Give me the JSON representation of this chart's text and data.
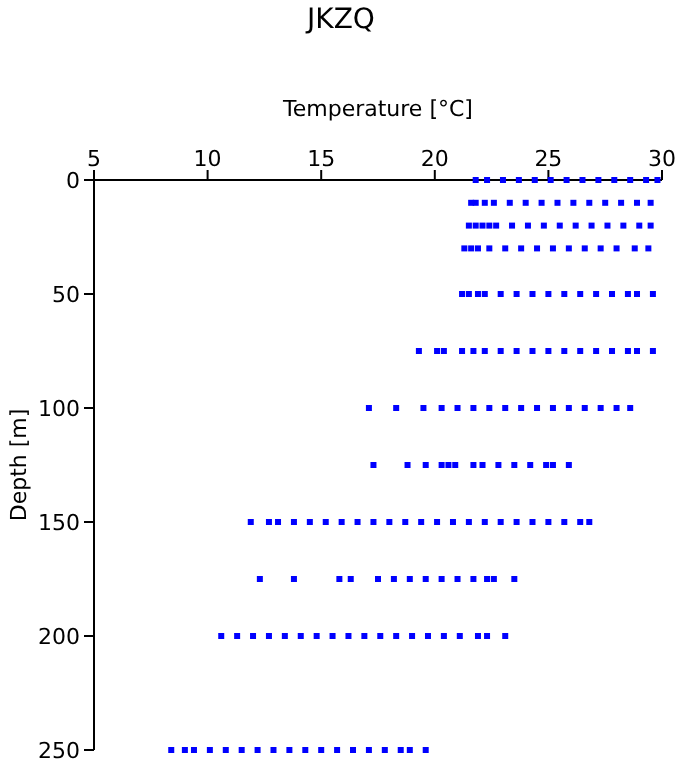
{
  "chart_data": {
    "type": "scatter",
    "title": "JKZQ",
    "xlabel": "Temperature [°C]",
    "ylabel": "Depth [m]",
    "xlim": [
      5,
      30
    ],
    "xticks": [
      5,
      10,
      15,
      20,
      25,
      30
    ],
    "ylim": [
      250,
      0
    ],
    "yticks": [
      0,
      50,
      100,
      150,
      200,
      250
    ],
    "grid": false,
    "legend": false,
    "marker": "square",
    "series": [
      {
        "color": "#0000ff",
        "x": [
          21.8,
          22.3,
          23.0,
          23.7,
          24.4,
          25.1,
          25.8,
          26.5,
          27.2,
          27.9,
          28.6,
          29.3,
          29.8
        ],
        "values": [
          0,
          0,
          0,
          0,
          0,
          0,
          0,
          0,
          0,
          0,
          0,
          0,
          0
        ]
      },
      {
        "color": "#0000ff",
        "x": [
          21.6,
          21.8,
          22.2,
          22.6,
          23.3,
          24.0,
          24.7,
          25.4,
          26.1,
          26.8,
          27.5,
          28.2,
          28.9,
          29.5
        ],
        "values": [
          10,
          10,
          10,
          10,
          10,
          10,
          10,
          10,
          10,
          10,
          10,
          10,
          10,
          10
        ]
      },
      {
        "color": "#0000ff",
        "x": [
          21.5,
          21.8,
          22.1,
          22.4,
          22.7,
          23.4,
          24.1,
          24.8,
          25.5,
          26.2,
          26.9,
          27.6,
          28.3,
          29.0,
          29.5
        ],
        "values": [
          20,
          20,
          20,
          20,
          20,
          20,
          20,
          20,
          20,
          20,
          20,
          20,
          20,
          20,
          20
        ]
      },
      {
        "color": "#0000ff",
        "x": [
          21.3,
          21.6,
          21.9,
          22.4,
          23.1,
          23.8,
          24.5,
          25.2,
          25.9,
          26.6,
          27.3,
          28.0,
          28.8,
          29.4
        ],
        "values": [
          30,
          30,
          30,
          30,
          30,
          30,
          30,
          30,
          30,
          30,
          30,
          30,
          30,
          30
        ]
      },
      {
        "color": "#0000ff",
        "x": [
          21.2,
          21.5,
          21.9,
          22.2,
          22.9,
          23.6,
          24.3,
          25.0,
          25.7,
          26.4,
          27.1,
          27.8,
          28.5,
          28.9,
          29.6
        ],
        "values": [
          50,
          50,
          50,
          50,
          50,
          50,
          50,
          50,
          50,
          50,
          50,
          50,
          50,
          50,
          50
        ]
      },
      {
        "color": "#0000ff",
        "x": [
          19.3,
          20.1,
          20.4,
          21.2,
          21.7,
          22.2,
          22.9,
          23.6,
          24.3,
          25.0,
          25.7,
          26.4,
          27.1,
          27.8,
          28.5,
          28.9,
          29.6
        ],
        "values": [
          75,
          75,
          75,
          75,
          75,
          75,
          75,
          75,
          75,
          75,
          75,
          75,
          75,
          75,
          75,
          75,
          75
        ]
      },
      {
        "color": "#0000ff",
        "x": [
          17.1,
          18.3,
          19.5,
          20.3,
          21.0,
          21.7,
          22.4,
          23.1,
          23.8,
          24.5,
          25.2,
          25.9,
          26.6,
          27.3,
          28.0,
          28.6
        ],
        "values": [
          100,
          100,
          100,
          100,
          100,
          100,
          100,
          100,
          100,
          100,
          100,
          100,
          100,
          100,
          100,
          100
        ]
      },
      {
        "color": "#0000ff",
        "x": [
          17.3,
          18.8,
          19.6,
          20.3,
          20.6,
          20.9,
          21.7,
          22.1,
          22.8,
          23.5,
          24.2,
          24.9,
          25.2,
          25.9
        ],
        "values": [
          125,
          125,
          125,
          125,
          125,
          125,
          125,
          125,
          125,
          125,
          125,
          125,
          125,
          125
        ]
      },
      {
        "color": "#0000ff",
        "x": [
          11.9,
          12.7,
          13.1,
          13.8,
          14.5,
          15.2,
          15.9,
          16.6,
          17.3,
          18.0,
          18.7,
          19.4,
          20.1,
          20.8,
          21.5,
          22.2,
          22.9,
          23.6,
          24.3,
          25.0,
          25.7,
          26.4,
          26.8
        ],
        "values": [
          150,
          150,
          150,
          150,
          150,
          150,
          150,
          150,
          150,
          150,
          150,
          150,
          150,
          150,
          150,
          150,
          150,
          150,
          150,
          150,
          150,
          150,
          150
        ]
      },
      {
        "color": "#0000ff",
        "x": [
          12.3,
          13.8,
          15.8,
          16.3,
          17.5,
          18.2,
          18.9,
          19.6,
          20.3,
          21.0,
          21.7,
          22.3,
          22.6,
          23.5
        ],
        "values": [
          175,
          175,
          175,
          175,
          175,
          175,
          175,
          175,
          175,
          175,
          175,
          175,
          175,
          175
        ]
      },
      {
        "color": "#0000ff",
        "x": [
          10.6,
          11.3,
          12.0,
          12.7,
          13.4,
          14.1,
          14.8,
          15.5,
          16.2,
          16.9,
          17.6,
          18.3,
          19.0,
          19.7,
          20.4,
          21.1,
          21.9,
          22.3,
          23.1
        ],
        "values": [
          200,
          200,
          200,
          200,
          200,
          200,
          200,
          200,
          200,
          200,
          200,
          200,
          200,
          200,
          200,
          200,
          200,
          200,
          200
        ]
      },
      {
        "color": "#0000ff",
        "x": [
          8.4,
          9.0,
          9.4,
          10.1,
          10.8,
          11.5,
          12.2,
          12.9,
          13.6,
          14.3,
          15.0,
          15.7,
          16.4,
          17.1,
          17.8,
          18.5,
          18.9,
          19.6
        ],
        "values": [
          250,
          250,
          250,
          250,
          250,
          250,
          250,
          250,
          250,
          250,
          250,
          250,
          250,
          250,
          250,
          250,
          250,
          250
        ]
      }
    ]
  }
}
